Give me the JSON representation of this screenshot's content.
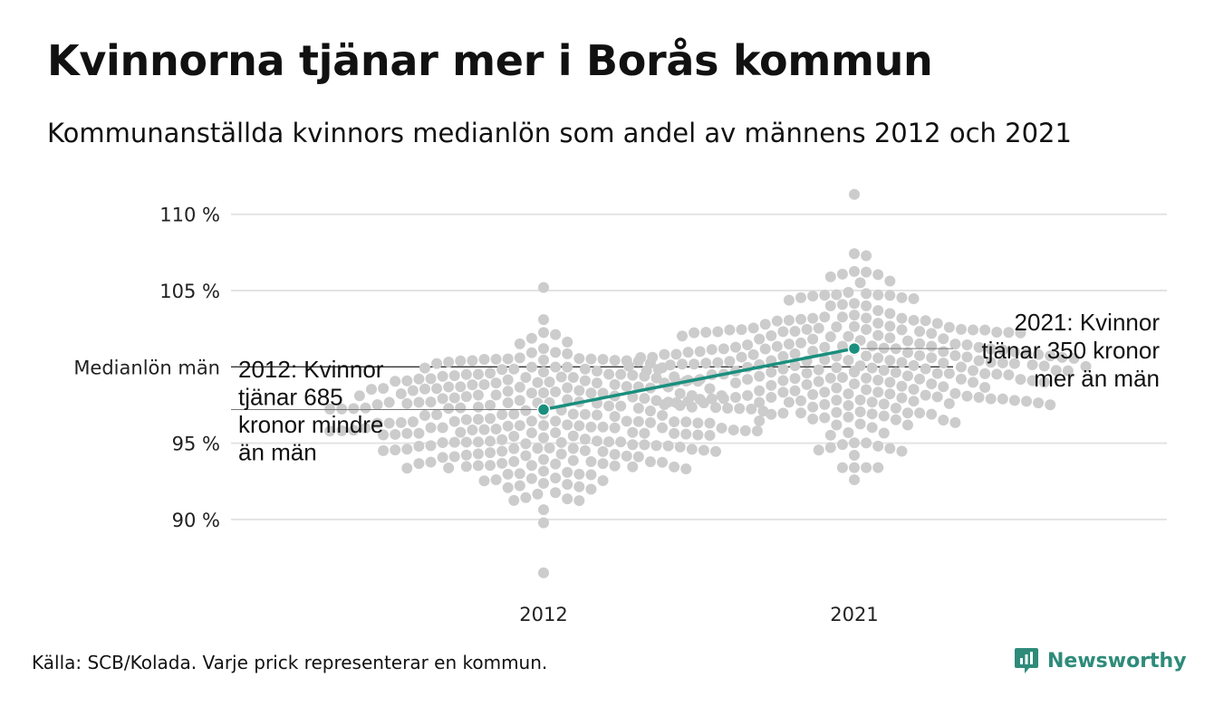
{
  "title": "Kvinnorna tjänar mer i Borås kommun",
  "subtitle": "Kommunanställda kvinnors medianlön som andel av männens 2012 och 2021",
  "source": "Källa: SCB/Kolada. Varje prick representerar en kommun.",
  "brand": {
    "name": "Newsworthy",
    "icon": "newsworthy-logo-icon",
    "color": "#2e8b7a"
  },
  "colors": {
    "dots": "#cccccc",
    "highlight": "#1a8f7e",
    "grid": "#e3e3e3",
    "reference": "#333333"
  },
  "chart_data": {
    "type": "scatter",
    "subtype": "beeswarm",
    "x_categories": [
      "2012",
      "2021"
    ],
    "ylim": [
      85.5,
      111.5
    ],
    "yticks": [
      90,
      95,
      105,
      110
    ],
    "ytick_labels": [
      "90 %",
      "95 %",
      "105 %",
      "110 %"
    ],
    "grid": true,
    "reference_line": {
      "value": 100,
      "label": "Medianlön män"
    },
    "highlight": {
      "name": "Borås",
      "values": [
        {
          "x": "2012",
          "y": 97.2,
          "annotation": [
            "2012: Kvinnor",
            "tjänar 685",
            "kronor mindre",
            "än män"
          ]
        },
        {
          "x": "2021",
          "y": 101.2,
          "annotation": [
            "2021: Kvinnor",
            "tjänar 350 kronor",
            "mer än män"
          ]
        }
      ]
    },
    "distributions": {
      "2012": {
        "n": 290,
        "median": 96.6,
        "spread": 2.6,
        "min": 86.5,
        "max": 105.2
      },
      "2021": {
        "n": 290,
        "median": 100.2,
        "spread": 2.6,
        "min": 92.6,
        "max": 111.3
      }
    }
  }
}
